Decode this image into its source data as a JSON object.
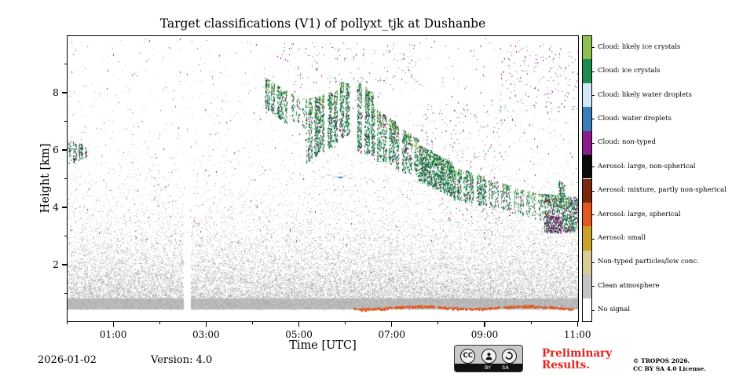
{
  "title": "Target classifications (V1) of pollyxt_tjk at Dushanbe",
  "footer": {
    "date": "2026-01-02",
    "version": "Version: 4.0",
    "preliminary_line1": "Preliminary",
    "preliminary_line2": "Results.",
    "copyright_line1": "© TROPOS 2026.",
    "copyright_line2": "CC BY SA 4.0 License.",
    "cc_badge": {
      "cc": "CC",
      "by": "BY",
      "sa": "SA"
    }
  },
  "chart_data": {
    "type": "heatmap",
    "title": "Target classifications (V1) of pollyxt_tjk at Dushanbe",
    "xlabel": "Time [UTC]",
    "ylabel": "Height [km]",
    "time_range_hours": [
      0,
      11.03
    ],
    "ylim": [
      0,
      10
    ],
    "x_ticks": [
      {
        "hour": 1,
        "label": "01:00"
      },
      {
        "hour": 3,
        "label": "03:00"
      },
      {
        "hour": 5,
        "label": "05:00"
      },
      {
        "hour": 7,
        "label": "07:00"
      },
      {
        "hour": 9,
        "label": "09:00"
      },
      {
        "hour": 11,
        "label": "11:00"
      }
    ],
    "x_minor_hours": [
      0,
      2,
      4,
      6,
      8,
      10
    ],
    "y_ticks": [
      2,
      4,
      6,
      8
    ],
    "y_minor": [
      1,
      3,
      5,
      7,
      9
    ],
    "legend_position": "right",
    "categories": [
      {
        "label": "Cloud: likely ice crystals",
        "color": "#8fbf4d"
      },
      {
        "label": "Cloud: ice crystals",
        "color": "#1e8b4f"
      },
      {
        "label": "Cloud: likely water droplets",
        "color": "#cfe8f7"
      },
      {
        "label": "Cloud: water droplets",
        "color": "#3a7dbd"
      },
      {
        "label": "Cloud: non-typed",
        "color": "#8b1a8b"
      },
      {
        "label": "Aerosol: large, non-spherical",
        "color": "#0a0a0a"
      },
      {
        "label": "Aerosol: mixture, partly non-spherical",
        "color": "#7a2a0a"
      },
      {
        "label": "Aerosol: large, spherical",
        "color": "#e2571c"
      },
      {
        "label": "Aerosol: small",
        "color": "#c9a227"
      },
      {
        "label": "Non-typed particles/low conc.",
        "color": "#d8cc96"
      },
      {
        "label": "Clean atmosphere",
        "color": "#c2c2c2"
      },
      {
        "label": "No signal",
        "color": "#ffffff"
      }
    ],
    "render": {
      "seed": 42,
      "palette": {
        "green": "#1e8b4f",
        "dgreen": "#0b6b37",
        "lgreen": "#8fbf4d",
        "purple": "#8b1a8b",
        "black": "#141414",
        "maroon": "#7a2a0a",
        "orange": "#e2571c",
        "blue": "#3a7dbd",
        "lblue": "#c7e3f5",
        "khaki": "#d8cc96",
        "gray": "#b7b7b7"
      },
      "gray_shades": [
        "#b3b3b3",
        "#bfbfbf",
        "#cbcbcb",
        "#a9a9a9"
      ],
      "noise": {
        "count": 26000,
        "base": 0.45,
        "scale": 1.15
      },
      "uniform_noise": {
        "count": 700,
        "h": [
          1.0,
          9.9
        ]
      },
      "khaki_noise": {
        "count": 260,
        "h": [
          0.8,
          1.9
        ]
      },
      "solid_band": {
        "h": [
          0.45,
          0.82
        ]
      },
      "gap": {
        "t": [
          2.52,
          2.67
        ],
        "h": [
          0.3,
          5.6
        ]
      },
      "orange_band": {
        "segments": [
          [
            6.18,
            7.0
          ],
          [
            7.06,
            7.92
          ],
          [
            7.98,
            9.32
          ],
          [
            9.4,
            10.32
          ],
          [
            10.38,
            10.92
          ]
        ],
        "h_center": 0.52
      },
      "blue_dashes": [
        {
          "t": 5.28,
          "h": 5.3,
          "len": 4,
          "c": "lblue"
        },
        {
          "t": 5.6,
          "h": 5.16,
          "len": 6,
          "c": "lblue"
        },
        {
          "t": 5.73,
          "h": 5.1,
          "len": 8,
          "c": "lblue"
        },
        {
          "t": 5.86,
          "h": 5.06,
          "len": 5,
          "c": "blue"
        },
        {
          "t": 5.97,
          "h": 5.12,
          "len": 4,
          "c": "lblue"
        },
        {
          "t": 6.05,
          "h": 5.03,
          "len": 5,
          "c": "lblue"
        }
      ],
      "default_mix": {
        "green": 0.42,
        "dgreen": 0.32,
        "lgreen": 0.1,
        "purple": 0.09,
        "maroon": 0.04,
        "black": 0.03
      },
      "bands": [
        {
          "t": [
            0.03,
            0.42
          ],
          "top": [
            6.35,
            6.2
          ],
          "bot": [
            5.55,
            5.75
          ],
          "n": 260,
          "streak": true,
          "mix": {
            "green": 0.4,
            "dgreen": 0.22,
            "purple": 0.22,
            "maroon": 0.08,
            "black": 0.08
          }
        },
        {
          "t": [
            4.27,
            4.75
          ],
          "top": [
            8.55,
            8.05
          ],
          "bot": [
            7.5,
            6.9
          ],
          "n": 550,
          "streak": true
        },
        {
          "t": [
            4.75,
            5.15
          ],
          "top": [
            8.05,
            7.75
          ],
          "bot": [
            7.1,
            6.7
          ],
          "n": 150,
          "streak": true
        },
        {
          "t": [
            5.15,
            5.5
          ],
          "top": [
            7.8,
            7.9
          ],
          "bot": [
            5.55,
            6.0
          ],
          "n": 700,
          "streak": true
        },
        {
          "t": [
            5.5,
            5.85
          ],
          "top": [
            7.95,
            8.1
          ],
          "bot": [
            5.9,
            6.3
          ],
          "n": 700,
          "streak": true
        },
        {
          "t": [
            5.85,
            6.12
          ],
          "top": [
            8.45,
            8.3
          ],
          "bot": [
            6.4,
            6.6
          ],
          "n": 520,
          "streak": true
        },
        {
          "t": [
            6.25,
            6.6
          ],
          "top": [
            8.45,
            8.0
          ],
          "bot": [
            5.95,
            5.8
          ],
          "n": 900,
          "streak": true
        },
        {
          "t": [
            6.6,
            7.08
          ],
          "top": [
            7.5,
            7.0
          ],
          "bot": [
            5.65,
            5.5
          ],
          "n": 750,
          "streak": true
        },
        {
          "t": [
            7.08,
            7.58
          ],
          "top": [
            6.9,
            6.4
          ],
          "bot": [
            5.3,
            5.1
          ],
          "n": 650,
          "streak": true
        },
        {
          "t": [
            7.58,
            8.32
          ],
          "top": [
            6.2,
            5.55
          ],
          "bot": [
            4.95,
            4.35
          ],
          "n": 1150,
          "streak": false,
          "mix": {
            "dgreen": 0.5,
            "green": 0.32,
            "lgreen": 0.05,
            "purple": 0.06,
            "maroon": 0.04,
            "black": 0.03
          }
        },
        {
          "t": [
            8.32,
            9.05
          ],
          "top": [
            5.45,
            5.05
          ],
          "bot": [
            4.3,
            4.05
          ],
          "n": 750,
          "streak": true
        },
        {
          "t": [
            9.05,
            9.62
          ],
          "top": [
            5.0,
            4.75
          ],
          "bot": [
            4.05,
            3.9
          ],
          "n": 320,
          "streak": true
        },
        {
          "t": [
            9.62,
            10.28
          ],
          "top": [
            4.7,
            4.45
          ],
          "bot": [
            3.8,
            3.55
          ],
          "n": 330,
          "streak": true
        },
        {
          "t": [
            10.28,
            11.02
          ],
          "top": [
            4.5,
            4.35
          ],
          "bot": [
            3.1,
            3.2
          ],
          "n": 1000,
          "streak": false,
          "mix": {
            "dgreen": 0.32,
            "green": 0.34,
            "lgreen": 0.04,
            "purple": 0.2,
            "maroon": 0.06,
            "black": 0.04
          }
        },
        {
          "t": [
            10.58,
            10.72
          ],
          "top": [
            4.95,
            4.85
          ],
          "bot": [
            4.3,
            4.3
          ],
          "n": 90,
          "streak": false
        }
      ],
      "scatters": [
        {
          "t": [
            0,
            11.02
          ],
          "h": [
            2.6,
            9.9
          ],
          "n": 520,
          "mix": {
            "purple": 0.85,
            "green": 0.1,
            "maroon": 0.05
          }
        },
        {
          "t": [
            9.3,
            11.0
          ],
          "h": [
            7.3,
            9.7
          ],
          "n": 150,
          "mix": {
            "purple": 0.7,
            "green": 0.3
          }
        },
        {
          "t": [
            4.6,
            7.6
          ],
          "h": [
            8.3,
            9.75
          ],
          "n": 120,
          "mix": {
            "purple": 0.6,
            "green": 0.4
          }
        },
        {
          "t": [
            7.6,
            9.4
          ],
          "h": [
            5.6,
            7.6
          ],
          "n": 100,
          "mix": {
            "purple": 0.55,
            "green": 0.45
          }
        },
        {
          "t": [
            10.32,
            10.64
          ],
          "h": [
            3.12,
            3.72
          ],
          "n": 170,
          "mix": {
            "purple": 0.8,
            "maroon": 0.1,
            "black": 0.1
          }
        },
        {
          "t": [
            8.2,
            9.6
          ],
          "h": [
            3.4,
            4.1
          ],
          "n": 50,
          "mix": {
            "purple": 0.5,
            "green": 0.5
          }
        }
      ]
    }
  }
}
